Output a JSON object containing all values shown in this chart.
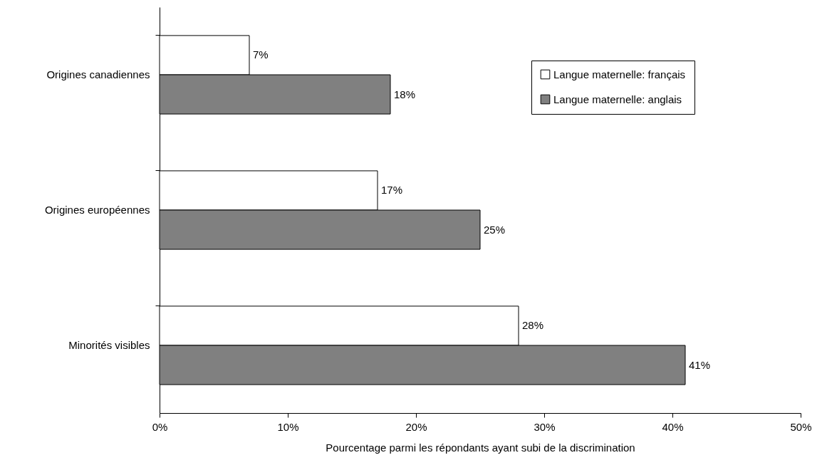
{
  "chart_data": {
    "type": "bar",
    "orientation": "horizontal",
    "xlabel": "Pourcentage parmi les répondants ayant subi de la discrimination",
    "categories": [
      "Origines canadiennes",
      "Origines européennes",
      "Minorités visibles"
    ],
    "series": [
      {
        "name": "Langue maternelle: français",
        "color": "#ffffff",
        "values": [
          7,
          17,
          28
        ],
        "value_labels": [
          "7%",
          "17%",
          "28%"
        ]
      },
      {
        "name": "Langue maternelle: anglais",
        "color": "#808080",
        "values": [
          18,
          25,
          41
        ],
        "value_labels": [
          "18%",
          "25%",
          "41%"
        ]
      }
    ],
    "xlim": [
      0,
      50
    ],
    "xticks": [
      {
        "value": 0,
        "label": "0%"
      },
      {
        "value": 10,
        "label": "10%"
      },
      {
        "value": 20,
        "label": "20%"
      },
      {
        "value": 30,
        "label": "30%"
      },
      {
        "value": 40,
        "label": "40%"
      },
      {
        "value": 50,
        "label": "50%"
      }
    ],
    "legend": "top right",
    "grid": false
  }
}
